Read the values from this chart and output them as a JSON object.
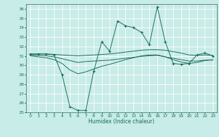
{
  "xlabel": "Humidex (Indice chaleur)",
  "bg_color": "#c8ece8",
  "grid_color": "#ffffff",
  "line_color": "#1a6b5a",
  "xlim": [
    -0.5,
    23.5
  ],
  "ylim": [
    25,
    36.5
  ],
  "yticks": [
    25,
    26,
    27,
    28,
    29,
    30,
    31,
    32,
    33,
    34,
    35,
    36
  ],
  "xticks": [
    0,
    1,
    2,
    3,
    4,
    5,
    6,
    7,
    8,
    9,
    10,
    11,
    12,
    13,
    14,
    15,
    16,
    17,
    18,
    19,
    20,
    21,
    22,
    23
  ],
  "series": [
    {
      "x": [
        0,
        1,
        2,
        3,
        4,
        5,
        6,
        7,
        8,
        9,
        10,
        11,
        12,
        13,
        14,
        15,
        16,
        17,
        18,
        19,
        20,
        21,
        22,
        23
      ],
      "y": [
        31.2,
        31.2,
        31.2,
        31.1,
        29.0,
        25.6,
        25.2,
        25.2,
        29.4,
        32.5,
        31.5,
        34.7,
        34.2,
        34.0,
        33.5,
        32.2,
        36.2,
        32.5,
        30.2,
        30.1,
        30.2,
        31.1,
        31.3,
        31.0
      ],
      "marker": "+"
    },
    {
      "x": [
        0,
        1,
        2,
        3,
        4,
        5,
        6,
        7,
        8,
        9,
        10,
        11,
        12,
        13,
        14,
        15,
        16,
        17,
        18,
        19,
        20,
        21,
        22,
        23
      ],
      "y": [
        31.2,
        31.2,
        31.2,
        31.15,
        31.1,
        31.05,
        31.0,
        31.05,
        31.1,
        31.15,
        31.2,
        31.3,
        31.4,
        31.5,
        31.6,
        31.65,
        31.65,
        31.6,
        31.45,
        31.3,
        31.1,
        31.05,
        31.1,
        31.05
      ],
      "marker": null
    },
    {
      "x": [
        0,
        1,
        2,
        3,
        4,
        5,
        6,
        7,
        8,
        9,
        10,
        11,
        12,
        13,
        14,
        15,
        16,
        17,
        18,
        19,
        20,
        21,
        22,
        23
      ],
      "y": [
        31.1,
        31.05,
        31.0,
        30.9,
        30.7,
        30.5,
        30.3,
        30.4,
        30.45,
        30.5,
        30.55,
        30.65,
        30.75,
        30.85,
        30.95,
        31.0,
        31.05,
        30.9,
        30.75,
        30.6,
        30.45,
        30.45,
        30.55,
        30.55
      ],
      "marker": null
    },
    {
      "x": [
        0,
        1,
        2,
        3,
        4,
        5,
        6,
        7,
        8,
        9,
        10,
        11,
        12,
        13,
        14,
        15,
        16,
        17,
        18,
        19,
        20,
        21,
        22,
        23
      ],
      "y": [
        31.0,
        30.9,
        30.8,
        30.6,
        30.2,
        29.5,
        29.1,
        29.3,
        29.6,
        29.9,
        30.1,
        30.35,
        30.6,
        30.8,
        31.0,
        31.1,
        31.1,
        30.9,
        30.6,
        30.35,
        30.2,
        30.3,
        30.5,
        30.6
      ],
      "marker": null
    }
  ]
}
